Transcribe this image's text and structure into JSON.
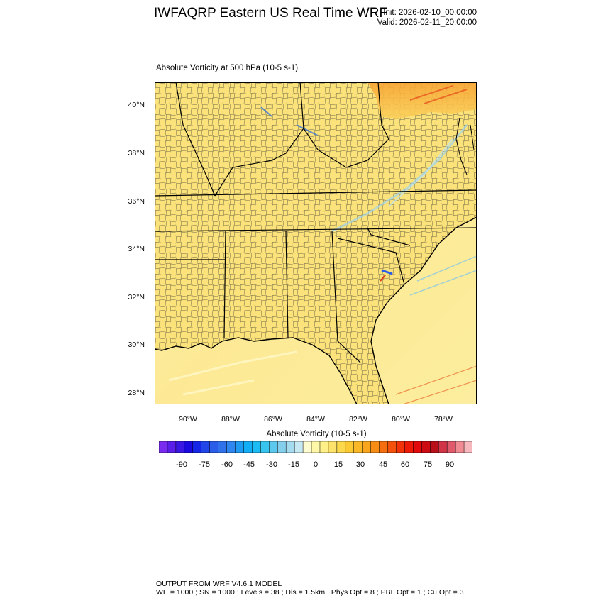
{
  "header": {
    "title": "IWFAQRP Eastern US Real Time WRF",
    "init": "Init: 2026-02-10_00:00:00",
    "valid": "Valid: 2026-02-11_20:00:00"
  },
  "field": {
    "title": "Absolute Vorticity at 500 hPa   (10-5 s-1)"
  },
  "map": {
    "lat_labels": [
      "40°N",
      "38°N",
      "36°N",
      "34°N",
      "32°N",
      "30°N",
      "28°N"
    ],
    "lon_labels": [
      "90°W",
      "88°W",
      "86°W",
      "84°W",
      "82°W",
      "80°W",
      "78°W"
    ],
    "land_color": "#fbe37a",
    "ocean_color": "#fcf3a6"
  },
  "colorbar": {
    "title": "Absolute Vorticity  (10-5 s-1)",
    "labels": [
      "-90",
      "-75",
      "-60",
      "-45",
      "-30",
      "-15",
      "0",
      "15",
      "30",
      "45",
      "60",
      "75",
      "90"
    ],
    "colors": [
      "#7a2bf0",
      "#5a1ee8",
      "#3a17e3",
      "#1b0ae0",
      "#1626e6",
      "#2145e6",
      "#2a5ee8",
      "#3072ea",
      "#2e86ee",
      "#1f9af3",
      "#12aef5",
      "#1bbcf3",
      "#37c5ef",
      "#5cc8ed",
      "#84cfeb",
      "#a5dbef",
      "#c6e8f3",
      "#fdfbd0",
      "#fff7a8",
      "#fff08a",
      "#fde36b",
      "#fcd84c",
      "#fbc934",
      "#fbb826",
      "#f9a51e",
      "#f88d16",
      "#f56f10",
      "#f4520c",
      "#f2330a",
      "#ee1a08",
      "#e20a0a",
      "#cc0b12",
      "#b80f18",
      "#d03446",
      "#e05a6b",
      "#f08b94",
      "#f7b8bd"
    ]
  },
  "footer": {
    "line1": "OUTPUT FROM WRF V4.6.1 MODEL",
    "line2": "WE = 1000 ; SN = 1000 ; Levels = 38 ; Dis = 1.5km ; Phys Opt = 8 ; PBL Opt = 1 ; Cu Opt = 3"
  }
}
